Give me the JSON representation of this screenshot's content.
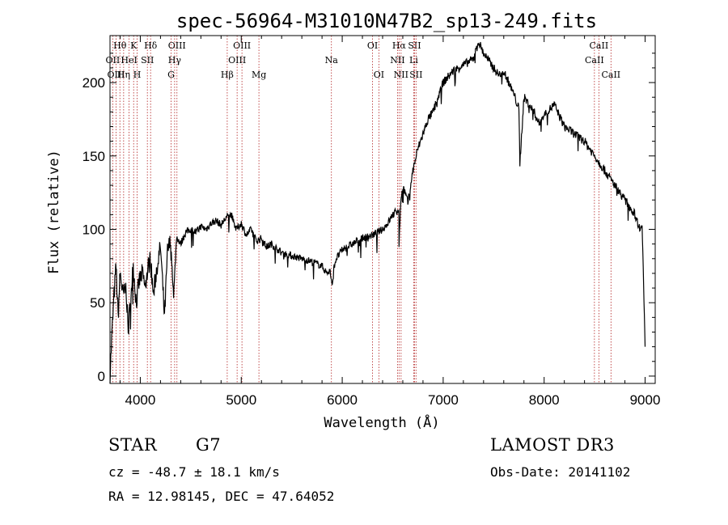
{
  "chart_data": {
    "type": "line",
    "title": "spec-56964-M31010N47B2_sp13-249.fits",
    "xlabel": "Wavelength (Å)",
    "ylabel": "Flux (relative)",
    "xlim": [
      3700,
      9100
    ],
    "ylim": [
      -5,
      232
    ],
    "xticks": [
      4000,
      5000,
      6000,
      7000,
      8000,
      9000
    ],
    "yticks": [
      0,
      50,
      100,
      150,
      200
    ],
    "series": [
      {
        "name": "spectrum",
        "x": [
          3700,
          3720,
          3740,
          3760,
          3780,
          3800,
          3830,
          3860,
          3880,
          3900,
          3930,
          3960,
          3990,
          4020,
          4050,
          4080,
          4100,
          4130,
          4160,
          4200,
          4240,
          4270,
          4300,
          4330,
          4360,
          4400,
          4450,
          4500,
          4550,
          4600,
          4650,
          4700,
          4750,
          4800,
          4850,
          4900,
          4950,
          5000,
          5050,
          5100,
          5150,
          5200,
          5250,
          5300,
          5400,
          5500,
          5600,
          5700,
          5800,
          5850,
          5880,
          5900,
          5920,
          5940,
          6000,
          6100,
          6200,
          6300,
          6400,
          6450,
          6500,
          6540,
          6560,
          6563,
          6580,
          6600,
          6650,
          6700,
          6750,
          6800,
          6850,
          6900,
          6950,
          7000,
          7100,
          7200,
          7300,
          7350,
          7400,
          7500,
          7550,
          7600,
          7650,
          7700,
          7750,
          7760,
          7800,
          7850,
          7900,
          7950,
          8000,
          8100,
          8200,
          8300,
          8400,
          8500,
          8550,
          8600,
          8650,
          8700,
          8800,
          8900,
          8950,
          8970,
          9000
        ],
        "values": [
          0,
          30,
          55,
          75,
          40,
          70,
          55,
          60,
          30,
          50,
          75,
          50,
          65,
          70,
          60,
          75,
          80,
          55,
          72,
          88,
          40,
          85,
          92,
          55,
          95,
          90,
          98,
          100,
          98,
          102,
          100,
          104,
          106,
          103,
          108,
          110,
          100,
          104,
          96,
          100,
          92,
          94,
          88,
          90,
          84,
          82,
          80,
          78,
          75,
          70,
          72,
          60,
          75,
          80,
          86,
          90,
          94,
          96,
          100,
          104,
          110,
          112,
          115,
          90,
          120,
          130,
          118,
          140,
          155,
          165,
          175,
          180,
          190,
          200,
          208,
          212,
          216,
          228,
          220,
          210,
          205,
          208,
          200,
          192,
          182,
          145,
          190,
          185,
          180,
          172,
          178,
          185,
          170,
          165,
          160,
          150,
          145,
          140,
          135,
          130,
          120,
          110,
          100,
          105,
          20
        ]
      }
    ],
    "lines": [
      {
        "label": "Hθ",
        "x": 3798,
        "row": 0
      },
      {
        "label": "OII",
        "x": 3727,
        "row": 1
      },
      {
        "label": "OIII",
        "x": 3760,
        "row": 2
      },
      {
        "label": "K",
        "x": 3934,
        "row": 0
      },
      {
        "label": "HeI",
        "x": 3889,
        "row": 1
      },
      {
        "label": "Hη",
        "x": 3835,
        "row": 2
      },
      {
        "label": "H",
        "x": 3969,
        "row": 2
      },
      {
        "label": "SII",
        "x": 4070,
        "row": 1
      },
      {
        "label": "Hδ",
        "x": 4102,
        "row": 0
      },
      {
        "label": "OIII",
        "x": 4363,
        "row": 0
      },
      {
        "label": "Hγ",
        "x": 4340,
        "row": 1
      },
      {
        "label": "G",
        "x": 4305,
        "row": 2
      },
      {
        "label": "OIII",
        "x": 5007,
        "row": 0
      },
      {
        "label": "OIII",
        "x": 4959,
        "row": 1
      },
      {
        "label": "Hβ",
        "x": 4861,
        "row": 2
      },
      {
        "label": "Mg",
        "x": 5175,
        "row": 2
      },
      {
        "label": "Na",
        "x": 5893,
        "row": 1
      },
      {
        "label": "OI",
        "x": 6300,
        "row": 0
      },
      {
        "label": "OI",
        "x": 6363,
        "row": 2
      },
      {
        "label": "Hα",
        "x": 6563,
        "row": 0
      },
      {
        "label": "SII",
        "x": 6716,
        "row": 0
      },
      {
        "label": "NII",
        "x": 6548,
        "row": 1
      },
      {
        "label": "Li",
        "x": 6708,
        "row": 1
      },
      {
        "label": "NII",
        "x": 6583,
        "row": 2
      },
      {
        "label": "SII",
        "x": 6731,
        "row": 2
      },
      {
        "label": "CaII",
        "x": 8542,
        "row": 0
      },
      {
        "label": "CaII",
        "x": 8498,
        "row": 1
      },
      {
        "label": "CaII",
        "x": 8662,
        "row": 2
      }
    ]
  },
  "info": {
    "object_class": "STAR",
    "subclass": "G7",
    "survey": "LAMOST DR3",
    "cz": "cz = -48.7 ± 18.1 km/s",
    "obs_date": "Obs-Date: 20141102",
    "coords": "RA =  12.98145, DEC =  47.64052"
  }
}
